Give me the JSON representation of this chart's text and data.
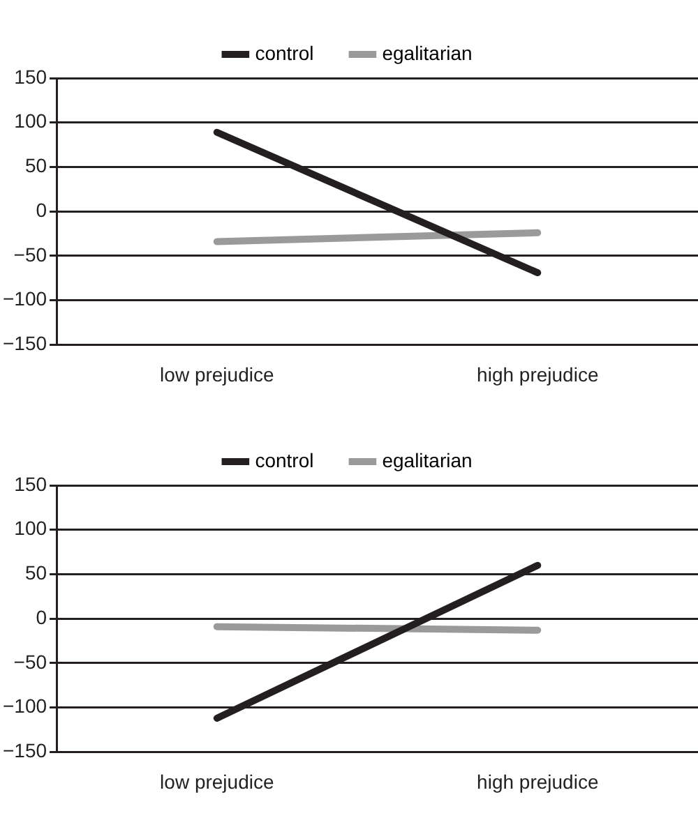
{
  "chart_data": [
    {
      "type": "line",
      "categories": [
        "low prejudice",
        "high prejudice"
      ],
      "series": [
        {
          "name": "control",
          "color": "#231f20",
          "values": [
            89,
            -69
          ]
        },
        {
          "name": "egalitarian",
          "color": "#9a9a9a",
          "values": [
            -34,
            -24
          ]
        }
      ],
      "ylim": [
        -150,
        150
      ],
      "yticks": [
        -150,
        -100,
        -50,
        0,
        50,
        100,
        150
      ],
      "grid": "y",
      "legend": "top",
      "marker": "none"
    },
    {
      "type": "line",
      "categories": [
        "low prejudice",
        "high prejudice"
      ],
      "series": [
        {
          "name": "control",
          "color": "#231f20",
          "values": [
            -112,
            60
          ]
        },
        {
          "name": "egalitarian",
          "color": "#9a9a9a",
          "values": [
            -9,
            -13
          ]
        }
      ],
      "ylim": [
        -150,
        150
      ],
      "yticks": [
        -150,
        -100,
        -50,
        0,
        50,
        100,
        150
      ],
      "grid": "y",
      "legend": "top",
      "marker": "none"
    }
  ]
}
